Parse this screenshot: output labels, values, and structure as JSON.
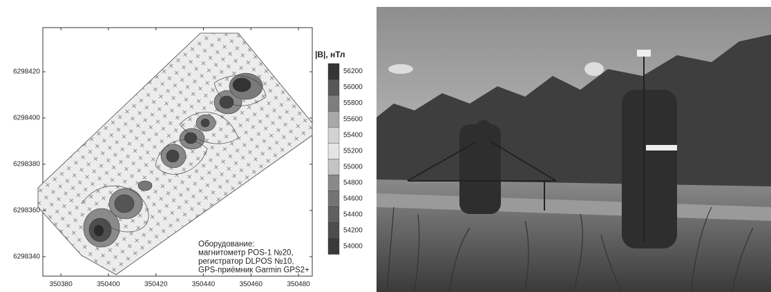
{
  "chart_data": {
    "type": "contour",
    "xlim": [
      350372.4,
      350485.8
    ],
    "xticks": [
      350380,
      350400,
      350420,
      350440,
      350460,
      350480
    ],
    "ylim": [
      6298331.6,
      6298439.1
    ],
    "yticks": [
      6298340,
      6298360,
      6298380,
      6298400,
      6298420
    ],
    "colorbar": {
      "title": "|B|, нТл",
      "lim": [
        53900,
        56400
      ],
      "ticks": [
        54000,
        54200,
        54400,
        54600,
        54800,
        55000,
        55200,
        55400,
        55600,
        55800,
        56000,
        56200
      ],
      "colors": [
        "#3a3a3a",
        "#4d4d4d",
        "#606060",
        "#747474",
        "#8a8a8a",
        "#c4c4c4",
        "#e4e4e4",
        "#d2d2d2",
        "#a8a8a8",
        "#7e7e7e",
        "#585858",
        "#353535"
      ]
    },
    "annotation": [
      "Оборудование:",
      "магнитометр POS-1 №20,",
      "регистратор DLPOS №10,",
      "GPS-приёмник Garmin GPS2+"
    ]
  }
}
